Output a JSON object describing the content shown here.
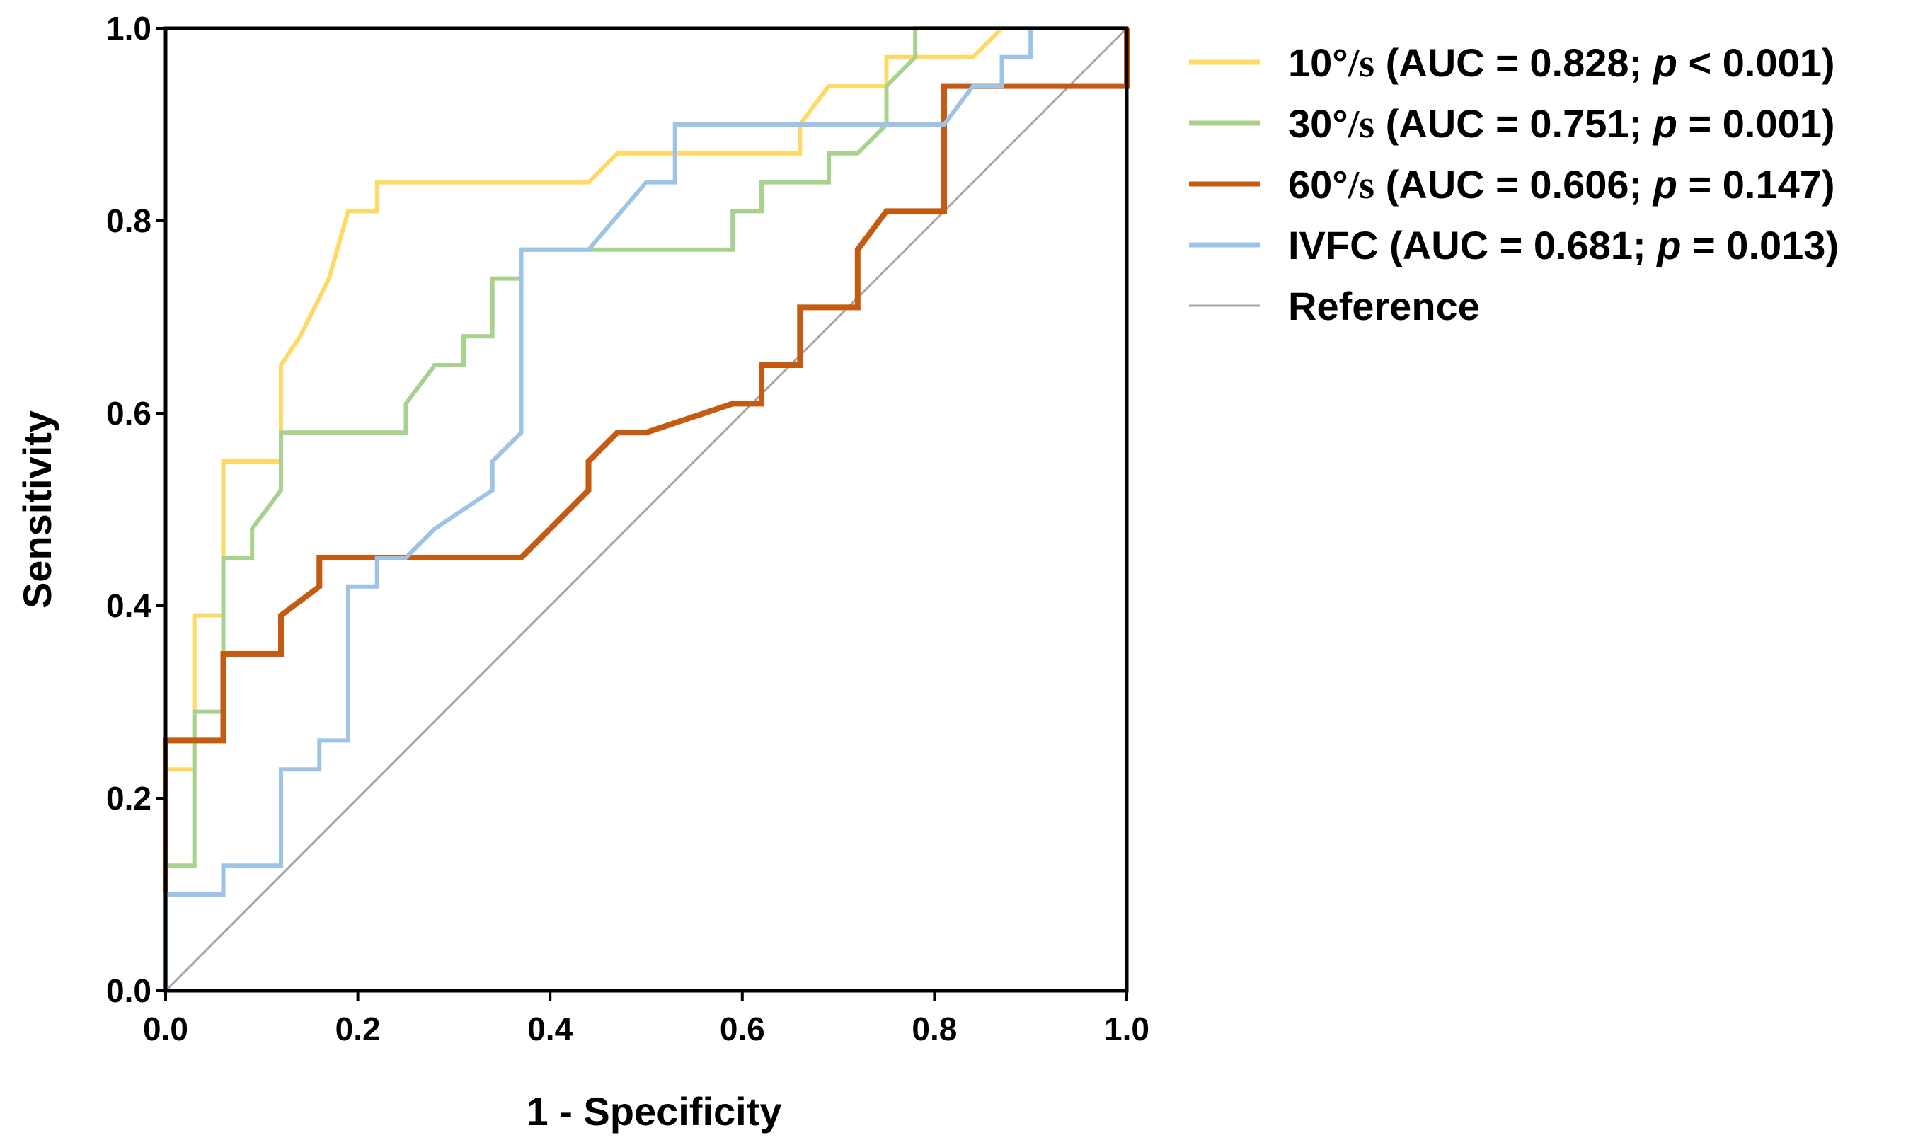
{
  "chart_data": {
    "type": "line",
    "title": "",
    "xlabel": "1 - Specificity",
    "ylabel": "Sensitivity",
    "xlim": [
      0,
      1
    ],
    "ylim": [
      0,
      1
    ],
    "grid": false,
    "legend_position": "right",
    "x_ticks": [
      "0.0",
      "0.2",
      "0.4",
      "0.6",
      "0.8",
      "1.0"
    ],
    "y_ticks": [
      "0.0",
      "0.2",
      "0.4",
      "0.6",
      "0.8",
      "1.0"
    ],
    "series": [
      {
        "name": "10°/s",
        "auc_text": "(AUC = 0.828; ",
        "p_symbol": "p",
        "p_text": " < 0.001)",
        "color": "#FFD966",
        "stroke": "normal",
        "points": [
          [
            0,
            0
          ],
          [
            0,
            0.23
          ],
          [
            0.03,
            0.23
          ],
          [
            0.03,
            0.39
          ],
          [
            0.06,
            0.39
          ],
          [
            0.06,
            0.55
          ],
          [
            0.12,
            0.55
          ],
          [
            0.12,
            0.65
          ],
          [
            0.14,
            0.68
          ],
          [
            0.17,
            0.74
          ],
          [
            0.19,
            0.81
          ],
          [
            0.22,
            0.81
          ],
          [
            0.22,
            0.84
          ],
          [
            0.44,
            0.84
          ],
          [
            0.47,
            0.87
          ],
          [
            0.53,
            0.87
          ],
          [
            0.53,
            0.87
          ],
          [
            0.66,
            0.87
          ],
          [
            0.66,
            0.9
          ],
          [
            0.69,
            0.94
          ],
          [
            0.75,
            0.94
          ],
          [
            0.75,
            0.97
          ],
          [
            0.84,
            0.97
          ],
          [
            0.87,
            1.0
          ],
          [
            1.0,
            1.0
          ]
        ]
      },
      {
        "name": "30°/s",
        "auc_text": "(AUC = 0.751; ",
        "p_symbol": "p",
        "p_text": " = 0.001)",
        "color": "#A9D18E",
        "stroke": "normal",
        "points": [
          [
            0,
            0
          ],
          [
            0,
            0.13
          ],
          [
            0.03,
            0.13
          ],
          [
            0.03,
            0.29
          ],
          [
            0.06,
            0.29
          ],
          [
            0.06,
            0.45
          ],
          [
            0.09,
            0.45
          ],
          [
            0.09,
            0.48
          ],
          [
            0.12,
            0.52
          ],
          [
            0.12,
            0.58
          ],
          [
            0.25,
            0.58
          ],
          [
            0.25,
            0.61
          ],
          [
            0.28,
            0.65
          ],
          [
            0.31,
            0.65
          ],
          [
            0.31,
            0.68
          ],
          [
            0.34,
            0.68
          ],
          [
            0.34,
            0.74
          ],
          [
            0.37,
            0.74
          ],
          [
            0.37,
            0.77
          ],
          [
            0.59,
            0.77
          ],
          [
            0.59,
            0.81
          ],
          [
            0.62,
            0.81
          ],
          [
            0.62,
            0.84
          ],
          [
            0.69,
            0.84
          ],
          [
            0.69,
            0.87
          ],
          [
            0.72,
            0.87
          ],
          [
            0.75,
            0.9
          ],
          [
            0.75,
            0.94
          ],
          [
            0.78,
            0.97
          ],
          [
            0.78,
            1.0
          ],
          [
            1.0,
            1.0
          ]
        ]
      },
      {
        "name": "60°/s",
        "auc_text": "(AUC = 0.606; ",
        "p_symbol": "p",
        "p_text": " = 0.147)",
        "color": "#C55A11",
        "stroke": "thick",
        "points": [
          [
            0,
            0.1
          ],
          [
            0,
            0.26
          ],
          [
            0.06,
            0.26
          ],
          [
            0.06,
            0.35
          ],
          [
            0.12,
            0.35
          ],
          [
            0.12,
            0.39
          ],
          [
            0.16,
            0.42
          ],
          [
            0.16,
            0.45
          ],
          [
            0.37,
            0.45
          ],
          [
            0.44,
            0.52
          ],
          [
            0.44,
            0.55
          ],
          [
            0.47,
            0.58
          ],
          [
            0.5,
            0.58
          ],
          [
            0.59,
            0.61
          ],
          [
            0.62,
            0.61
          ],
          [
            0.62,
            0.65
          ],
          [
            0.64,
            0.65
          ],
          [
            0.66,
            0.65
          ],
          [
            0.66,
            0.71
          ],
          [
            0.72,
            0.71
          ],
          [
            0.72,
            0.77
          ],
          [
            0.75,
            0.81
          ],
          [
            0.81,
            0.81
          ],
          [
            0.81,
            0.94
          ],
          [
            0.87,
            0.94
          ],
          [
            1.0,
            0.94
          ],
          [
            1.0,
            1.0
          ]
        ]
      },
      {
        "name": "IVFC",
        "auc_text": "(AUC = 0.681; ",
        "p_symbol": "p",
        "p_text": " = 0.013)",
        "color": "#9DC3E6",
        "stroke": "normal",
        "points": [
          [
            0,
            0
          ],
          [
            0,
            0.1
          ],
          [
            0.06,
            0.1
          ],
          [
            0.06,
            0.13
          ],
          [
            0.12,
            0.13
          ],
          [
            0.12,
            0.23
          ],
          [
            0.16,
            0.23
          ],
          [
            0.16,
            0.26
          ],
          [
            0.19,
            0.26
          ],
          [
            0.19,
            0.42
          ],
          [
            0.22,
            0.42
          ],
          [
            0.22,
            0.45
          ],
          [
            0.25,
            0.45
          ],
          [
            0.28,
            0.48
          ],
          [
            0.34,
            0.52
          ],
          [
            0.34,
            0.55
          ],
          [
            0.37,
            0.58
          ],
          [
            0.37,
            0.77
          ],
          [
            0.44,
            0.77
          ],
          [
            0.5,
            0.84
          ],
          [
            0.53,
            0.84
          ],
          [
            0.53,
            0.9
          ],
          [
            0.81,
            0.9
          ],
          [
            0.84,
            0.94
          ],
          [
            0.87,
            0.94
          ],
          [
            0.87,
            0.97
          ],
          [
            0.9,
            0.97
          ],
          [
            0.9,
            1.0
          ],
          [
            1.0,
            1.0
          ]
        ]
      },
      {
        "name": "Reference",
        "color": "#A6A6A6",
        "stroke": "thin",
        "points": [
          [
            0,
            0
          ],
          [
            1,
            1
          ]
        ]
      }
    ]
  }
}
